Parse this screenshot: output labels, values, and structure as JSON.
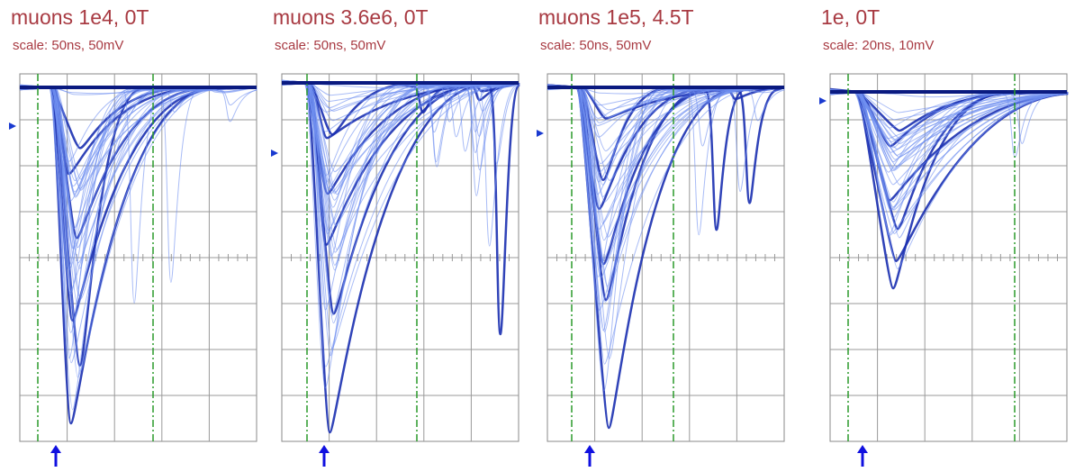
{
  "panels": [
    {
      "title": "muons 1e4,  0T",
      "scale": "scale: 50ns, 50mV"
    },
    {
      "title": "muons 3.6e6,  0T",
      "scale": "scale: 50ns, 50mV"
    },
    {
      "title": "muons 1e5,  4.5T",
      "scale": "scale: 50ns, 50mV"
    },
    {
      "title": "1e,  0T",
      "scale": "scale: 20ns, 10mV"
    }
  ]
}
